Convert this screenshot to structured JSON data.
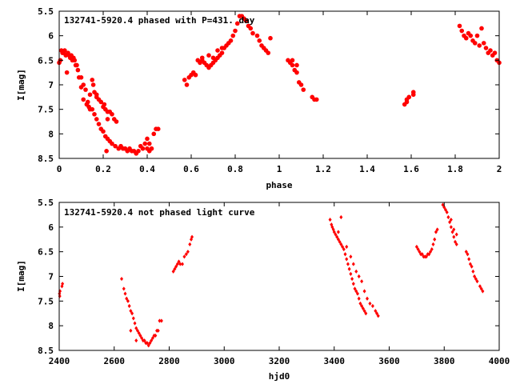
{
  "chart_data": [
    {
      "type": "scatter",
      "title": "132741-5920.4 phased with P=431. day",
      "xlabel": "phase",
      "ylabel": "I[mag]",
      "xlim": [
        0,
        2
      ],
      "ylim": [
        5.5,
        8.5
      ],
      "y_inverted": true,
      "grid": false,
      "marker": "filled-circle",
      "color": "#ff0000",
      "x_ticks": [
        "0",
        "0.2",
        "0.4",
        "0.6",
        "0.8",
        "1",
        "1.2",
        "1.4",
        "1.6",
        "1.8",
        "2"
      ],
      "y_ticks": [
        "5.5",
        "6",
        "6.5",
        "7",
        "7.5",
        "8",
        "8.5"
      ],
      "x_tick_values": [
        0,
        0.2,
        0.4,
        0.6,
        0.8,
        1.0,
        1.2,
        1.4,
        1.6,
        1.8,
        2.0
      ],
      "y_tick_values": [
        5.5,
        6,
        6.5,
        7,
        7.5,
        8,
        8.5
      ],
      "points": [
        [
          0.0,
          6.55
        ],
        [
          0.005,
          6.5
        ],
        [
          0.01,
          6.3
        ],
        [
          0.015,
          6.35
        ],
        [
          0.02,
          6.35
        ],
        [
          0.025,
          6.3
        ],
        [
          0.03,
          6.4
        ],
        [
          0.035,
          6.75
        ],
        [
          0.04,
          6.35
        ],
        [
          0.045,
          6.4
        ],
        [
          0.05,
          6.45
        ],
        [
          0.055,
          6.4
        ],
        [
          0.06,
          6.5
        ],
        [
          0.065,
          6.45
        ],
        [
          0.07,
          6.5
        ],
        [
          0.075,
          6.6
        ],
        [
          0.08,
          6.6
        ],
        [
          0.085,
          6.7
        ],
        [
          0.09,
          6.85
        ],
        [
          0.1,
          7.05
        ],
        [
          0.1,
          6.85
        ],
        [
          0.11,
          7.0
        ],
        [
          0.12,
          7.1
        ],
        [
          0.11,
          7.3
        ],
        [
          0.13,
          7.35
        ],
        [
          0.14,
          7.2
        ],
        [
          0.14,
          7.5
        ],
        [
          0.15,
          7.5
        ],
        [
          0.15,
          6.9
        ],
        [
          0.155,
          7.0
        ],
        [
          0.16,
          7.6
        ],
        [
          0.16,
          7.15
        ],
        [
          0.17,
          7.7
        ],
        [
          0.17,
          7.25
        ],
        [
          0.18,
          7.8
        ],
        [
          0.18,
          7.3
        ],
        [
          0.19,
          7.9
        ],
        [
          0.19,
          7.35
        ],
        [
          0.2,
          7.95
        ],
        [
          0.2,
          7.45
        ],
        [
          0.205,
          7.4
        ],
        [
          0.21,
          8.05
        ],
        [
          0.21,
          7.5
        ],
        [
          0.22,
          8.1
        ],
        [
          0.22,
          7.55
        ],
        [
          0.23,
          8.15
        ],
        [
          0.23,
          7.55
        ],
        [
          0.24,
          8.2
        ],
        [
          0.24,
          7.6
        ],
        [
          0.25,
          7.7
        ],
        [
          0.255,
          8.25
        ],
        [
          0.26,
          7.75
        ],
        [
          0.27,
          8.3
        ],
        [
          0.28,
          8.25
        ],
        [
          0.29,
          8.3
        ],
        [
          0.3,
          8.3
        ],
        [
          0.31,
          8.35
        ],
        [
          0.32,
          8.3
        ],
        [
          0.33,
          8.35
        ],
        [
          0.34,
          8.35
        ],
        [
          0.35,
          8.4
        ],
        [
          0.36,
          8.35
        ],
        [
          0.37,
          8.25
        ],
        [
          0.38,
          8.3
        ],
        [
          0.39,
          8.2
        ],
        [
          0.4,
          8.3
        ],
        [
          0.4,
          8.1
        ],
        [
          0.41,
          8.2
        ],
        [
          0.41,
          8.35
        ],
        [
          0.42,
          8.3
        ],
        [
          0.43,
          8.0
        ],
        [
          0.44,
          7.9
        ],
        [
          0.45,
          7.9
        ],
        [
          0.22,
          7.7
        ],
        [
          0.215,
          8.35
        ],
        [
          0.17,
          7.2
        ],
        [
          0.125,
          7.4
        ],
        [
          0.135,
          7.45
        ],
        [
          0.57,
          6.9
        ],
        [
          0.58,
          7.0
        ],
        [
          0.59,
          6.85
        ],
        [
          0.6,
          6.8
        ],
        [
          0.61,
          6.75
        ],
        [
          0.62,
          6.8
        ],
        [
          0.63,
          6.5
        ],
        [
          0.64,
          6.55
        ],
        [
          0.65,
          6.5
        ],
        [
          0.66,
          6.55
        ],
        [
          0.67,
          6.6
        ],
        [
          0.68,
          6.65
        ],
        [
          0.69,
          6.6
        ],
        [
          0.7,
          6.55
        ],
        [
          0.71,
          6.5
        ],
        [
          0.72,
          6.45
        ],
        [
          0.73,
          6.4
        ],
        [
          0.74,
          6.35
        ],
        [
          0.75,
          6.25
        ],
        [
          0.76,
          6.2
        ],
        [
          0.77,
          6.15
        ],
        [
          0.78,
          6.1
        ],
        [
          0.79,
          6.0
        ],
        [
          0.8,
          5.9
        ],
        [
          0.81,
          5.75
        ],
        [
          0.82,
          5.6
        ],
        [
          0.83,
          5.6
        ],
        [
          0.84,
          5.65
        ],
        [
          0.85,
          5.7
        ],
        [
          0.86,
          5.8
        ],
        [
          0.87,
          5.85
        ],
        [
          0.88,
          5.95
        ],
        [
          0.9,
          6.0
        ],
        [
          0.91,
          6.1
        ],
        [
          0.92,
          6.2
        ],
        [
          0.93,
          6.25
        ],
        [
          0.94,
          6.3
        ],
        [
          0.95,
          6.35
        ],
        [
          0.96,
          6.05
        ],
        [
          0.68,
          6.4
        ],
        [
          0.7,
          6.45
        ],
        [
          0.72,
          6.3
        ],
        [
          0.74,
          6.25
        ],
        [
          0.65,
          6.45
        ],
        [
          1.04,
          6.5
        ],
        [
          1.05,
          6.55
        ],
        [
          1.06,
          6.6
        ],
        [
          1.07,
          6.7
        ],
        [
          1.08,
          6.75
        ],
        [
          1.09,
          6.95
        ],
        [
          1.1,
          7.0
        ],
        [
          1.11,
          7.1
        ],
        [
          1.15,
          7.25
        ],
        [
          1.16,
          7.3
        ],
        [
          1.17,
          7.3
        ],
        [
          1.06,
          6.5
        ],
        [
          1.08,
          6.6
        ],
        [
          1.57,
          7.4
        ],
        [
          1.58,
          7.35
        ],
        [
          1.59,
          7.25
        ],
        [
          1.61,
          7.15
        ],
        [
          1.61,
          7.2
        ],
        [
          1.58,
          7.3
        ],
        [
          1.82,
          5.8
        ],
        [
          1.83,
          5.9
        ],
        [
          1.84,
          6.0
        ],
        [
          1.85,
          6.05
        ],
        [
          1.86,
          5.95
        ],
        [
          1.87,
          6.0
        ],
        [
          1.88,
          6.1
        ],
        [
          1.89,
          6.15
        ],
        [
          1.9,
          6.0
        ],
        [
          1.91,
          6.2
        ],
        [
          1.92,
          5.85
        ],
        [
          1.93,
          6.15
        ],
        [
          1.94,
          6.25
        ],
        [
          1.95,
          6.35
        ],
        [
          1.96,
          6.3
        ],
        [
          1.97,
          6.4
        ],
        [
          1.98,
          6.35
        ],
        [
          1.99,
          6.5
        ],
        [
          2.0,
          6.55
        ]
      ]
    },
    {
      "type": "scatter",
      "title": "132741-5920.4 not phased light curve",
      "xlabel": "hjd0",
      "ylabel": "I[mag]",
      "xlim": [
        2400,
        4000
      ],
      "ylim": [
        5.5,
        8.5
      ],
      "y_inverted": true,
      "grid": false,
      "marker": "filled-diamond",
      "color": "#ff0000",
      "x_ticks": [
        "2400",
        "2600",
        "2800",
        "3000",
        "3200",
        "3400",
        "3600",
        "3800",
        "4000"
      ],
      "y_ticks": [
        "5.5",
        "6",
        "6.5",
        "7",
        "7.5",
        "8",
        "8.5"
      ],
      "x_tick_values": [
        2400,
        2600,
        2800,
        3000,
        3200,
        3400,
        3600,
        3800,
        4000
      ],
      "y_tick_values": [
        5.5,
        6,
        6.5,
        7,
        7.5,
        8,
        8.5
      ],
      "points": [
        [
          2401,
          7.35
        ],
        [
          2402,
          7.4
        ],
        [
          2403,
          7.3
        ],
        [
          2410,
          7.2
        ],
        [
          2412,
          7.15
        ],
        [
          2627,
          7.05
        ],
        [
          2635,
          7.25
        ],
        [
          2640,
          7.35
        ],
        [
          2645,
          7.45
        ],
        [
          2650,
          7.5
        ],
        [
          2655,
          7.6
        ],
        [
          2660,
          7.7
        ],
        [
          2665,
          7.75
        ],
        [
          2670,
          7.85
        ],
        [
          2675,
          7.95
        ],
        [
          2680,
          8.05
        ],
        [
          2685,
          8.1
        ],
        [
          2690,
          8.15
        ],
        [
          2695,
          8.2
        ],
        [
          2700,
          8.25
        ],
        [
          2705,
          8.3
        ],
        [
          2710,
          8.3
        ],
        [
          2715,
          8.35
        ],
        [
          2720,
          8.35
        ],
        [
          2725,
          8.4
        ],
        [
          2730,
          8.35
        ],
        [
          2735,
          8.3
        ],
        [
          2740,
          8.25
        ],
        [
          2745,
          8.2
        ],
        [
          2750,
          8.2
        ],
        [
          2755,
          8.1
        ],
        [
          2760,
          8.1
        ],
        [
          2765,
          7.9
        ],
        [
          2772,
          7.9
        ],
        [
          2660,
          8.1
        ],
        [
          2680,
          8.3
        ],
        [
          2815,
          6.9
        ],
        [
          2820,
          6.85
        ],
        [
          2825,
          6.8
        ],
        [
          2830,
          6.75
        ],
        [
          2835,
          6.7
        ],
        [
          2840,
          6.75
        ],
        [
          2848,
          6.75
        ],
        [
          2855,
          6.6
        ],
        [
          2862,
          6.55
        ],
        [
          2868,
          6.5
        ],
        [
          2875,
          6.35
        ],
        [
          2880,
          6.25
        ],
        [
          2883,
          6.2
        ],
        [
          3385,
          5.85
        ],
        [
          3390,
          5.95
        ],
        [
          3393,
          6.0
        ],
        [
          3397,
          6.05
        ],
        [
          3400,
          6.1
        ],
        [
          3405,
          6.15
        ],
        [
          3410,
          6.2
        ],
        [
          3415,
          6.25
        ],
        [
          3420,
          6.3
        ],
        [
          3425,
          6.35
        ],
        [
          3430,
          6.4
        ],
        [
          3435,
          6.45
        ],
        [
          3440,
          6.55
        ],
        [
          3445,
          6.65
        ],
        [
          3450,
          6.75
        ],
        [
          3455,
          6.85
        ],
        [
          3460,
          6.95
        ],
        [
          3465,
          7.05
        ],
        [
          3470,
          7.15
        ],
        [
          3475,
          7.25
        ],
        [
          3480,
          7.3
        ],
        [
          3485,
          7.35
        ],
        [
          3490,
          7.45
        ],
        [
          3495,
          7.55
        ],
        [
          3500,
          7.6
        ],
        [
          3505,
          7.65
        ],
        [
          3510,
          7.7
        ],
        [
          3515,
          7.75
        ],
        [
          3425,
          5.8
        ],
        [
          3415,
          6.1
        ],
        [
          3445,
          6.4
        ],
        [
          3460,
          6.6
        ],
        [
          3470,
          6.75
        ],
        [
          3480,
          6.9
        ],
        [
          3490,
          7.0
        ],
        [
          3500,
          7.1
        ],
        [
          3510,
          7.3
        ],
        [
          3520,
          7.45
        ],
        [
          3530,
          7.55
        ],
        [
          3540,
          7.6
        ],
        [
          3550,
          7.7
        ],
        [
          3555,
          7.75
        ],
        [
          3560,
          7.8
        ],
        [
          3700,
          6.4
        ],
        [
          3705,
          6.45
        ],
        [
          3710,
          6.5
        ],
        [
          3715,
          6.55
        ],
        [
          3720,
          6.55
        ],
        [
          3725,
          6.6
        ],
        [
          3730,
          6.6
        ],
        [
          3735,
          6.6
        ],
        [
          3740,
          6.55
        ],
        [
          3745,
          6.55
        ],
        [
          3750,
          6.5
        ],
        [
          3755,
          6.45
        ],
        [
          3760,
          6.35
        ],
        [
          3765,
          6.25
        ],
        [
          3770,
          6.1
        ],
        [
          3775,
          6.05
        ],
        [
          3795,
          5.55
        ],
        [
          3800,
          5.6
        ],
        [
          3805,
          5.65
        ],
        [
          3810,
          5.7
        ],
        [
          3815,
          5.8
        ],
        [
          3820,
          5.9
        ],
        [
          3825,
          6.0
        ],
        [
          3830,
          6.1
        ],
        [
          3835,
          6.2
        ],
        [
          3840,
          6.3
        ],
        [
          3845,
          6.35
        ],
        [
          3825,
          5.85
        ],
        [
          3835,
          6.05
        ],
        [
          3845,
          6.15
        ],
        [
          3880,
          6.5
        ],
        [
          3885,
          6.55
        ],
        [
          3890,
          6.65
        ],
        [
          3895,
          6.75
        ],
        [
          3900,
          6.8
        ],
        [
          3905,
          6.9
        ],
        [
          3910,
          7.0
        ],
        [
          3915,
          7.05
        ],
        [
          3920,
          7.1
        ],
        [
          3930,
          7.2
        ],
        [
          3935,
          7.25
        ],
        [
          3940,
          7.3
        ]
      ]
    }
  ]
}
